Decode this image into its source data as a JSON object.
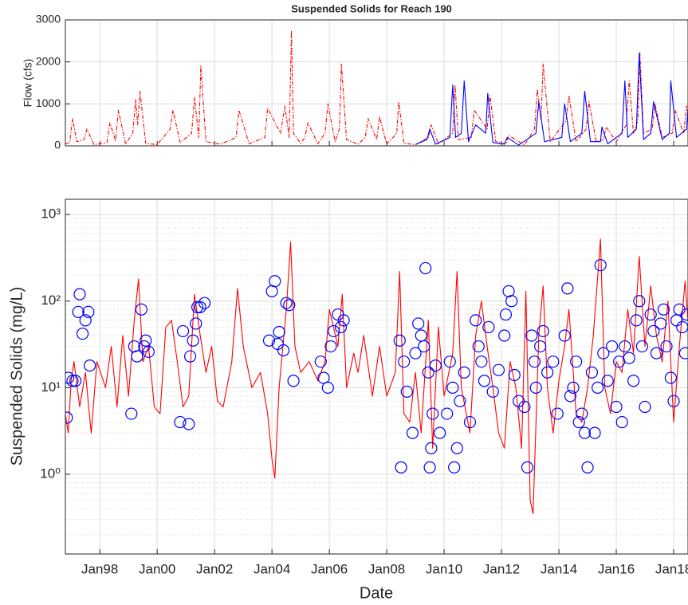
{
  "chart_data": [
    {
      "type": "line",
      "title": "Suspended Solids for Reach 190",
      "ylabel": "Flow (cfs)",
      "xlim": [
        1996.8,
        2018.5
      ],
      "xticks": [
        1998,
        2000,
        2002,
        2004,
        2006,
        2008,
        2010,
        2012,
        2014,
        2016,
        2018
      ],
      "show_xtick_labels": false,
      "ylim": [
        0,
        3000
      ],
      "yticks": [
        0,
        1000,
        2000,
        3000
      ],
      "grid": true,
      "series": [
        {
          "color": "#ff0000",
          "style": "line",
          "dash": "dashdot",
          "x": [
            1996.8,
            1996.95,
            1997.05,
            1997.2,
            1997.45,
            1997.55,
            1997.8,
            1998.25,
            1998.35,
            1998.55,
            1998.65,
            1998.9,
            1999.15,
            1999.25,
            1999.32,
            1999.4,
            1999.6,
            2000.0,
            2000.45,
            2000.55,
            2000.8,
            2001.2,
            2001.3,
            2001.45,
            2001.52,
            2001.7,
            2002.2,
            2002.75,
            2002.85,
            2003.2,
            2003.75,
            2003.85,
            2004.3,
            2004.45,
            2004.6,
            2004.68,
            2004.75,
            2005.0,
            2005.15,
            2005.25,
            2005.6,
            2005.85,
            2005.95,
            2006.2,
            2006.35,
            2006.42,
            2006.6,
            2007.0,
            2007.25,
            2007.35,
            2007.65,
            2007.75,
            2008.0,
            2008.35,
            2008.42,
            2008.6,
            2009.0,
            2009.45,
            2009.55,
            2009.8,
            2010.3,
            2010.38,
            2010.5,
            2010.95,
            2011.05,
            2011.5,
            2011.6,
            2011.8,
            2012.15,
            2012.25,
            2012.8,
            2013.15,
            2013.25,
            2013.38,
            2013.45,
            2013.7,
            2014.25,
            2014.35,
            2014.6,
            2014.95,
            2015.05,
            2015.3,
            2015.55,
            2015.65,
            2016.0,
            2016.35,
            2016.45,
            2016.6,
            2016.75,
            2016.82,
            2016.95,
            2017.25,
            2017.35,
            2017.6,
            2017.95,
            2018.05,
            2018.35,
            2018.45,
            2018.6
          ],
          "values": [
            40,
            80,
            650,
            100,
            150,
            400,
            30,
            80,
            550,
            120,
            850,
            40,
            300,
            1100,
            500,
            1300,
            60,
            30,
            400,
            850,
            80,
            300,
            1150,
            200,
            1900,
            100,
            40,
            200,
            850,
            50,
            200,
            900,
            300,
            950,
            200,
            2750,
            300,
            60,
            200,
            550,
            50,
            300,
            1000,
            100,
            400,
            1950,
            150,
            40,
            200,
            650,
            150,
            700,
            40,
            300,
            1050,
            60,
            30,
            200,
            500,
            50,
            300,
            1450,
            150,
            200,
            850,
            400,
            1200,
            100,
            40,
            250,
            20,
            400,
            1350,
            600,
            1950,
            100,
            600,
            1200,
            100,
            400,
            1050,
            100,
            150,
            450,
            100,
            500,
            1550,
            300,
            600,
            2250,
            300,
            400,
            1000,
            200,
            300,
            850,
            300,
            950,
            400
          ]
        },
        {
          "color": "#0000ff",
          "style": "line",
          "x": [
            2009.0,
            2009.4,
            2009.5,
            2009.7,
            2010.2,
            2010.3,
            2010.4,
            2010.6,
            2010.7,
            2010.85,
            2011.1,
            2011.45,
            2011.52,
            2011.7,
            2012.1,
            2012.2,
            2012.6,
            2013.2,
            2013.3,
            2013.5,
            2014.1,
            2014.2,
            2014.4,
            2014.8,
            2014.9,
            2015.1,
            2015.45,
            2015.5,
            2015.7,
            2016.2,
            2016.3,
            2016.4,
            2016.7,
            2016.8,
            2016.95,
            2017.2,
            2017.3,
            2017.6,
            2017.85,
            2017.9,
            2018.1,
            2018.45,
            2018.5,
            2018.6
          ],
          "values": [
            30,
            150,
            400,
            40,
            200,
            1450,
            200,
            300,
            1550,
            100,
            500,
            300,
            1250,
            80,
            40,
            200,
            20,
            300,
            1050,
            100,
            200,
            1000,
            100,
            300,
            1300,
            100,
            100,
            450,
            50,
            300,
            1550,
            200,
            400,
            2200,
            150,
            300,
            1050,
            150,
            300,
            1550,
            200,
            400,
            900,
            300
          ]
        }
      ]
    },
    {
      "type": "line",
      "xlabel": "Date",
      "ylabel": "Suspended Solids (mg/L)",
      "xlim": [
        1996.8,
        2018.5
      ],
      "xticks": [
        {
          "value": 1998,
          "label": "Jan98"
        },
        {
          "value": 2000,
          "label": "Jan00"
        },
        {
          "value": 2002,
          "label": "Jan02"
        },
        {
          "value": 2004,
          "label": "Jan04"
        },
        {
          "value": 2006,
          "label": "Jan06"
        },
        {
          "value": 2008,
          "label": "Jan08"
        },
        {
          "value": 2010,
          "label": "Jan10"
        },
        {
          "value": 2012,
          "label": "Jan12"
        },
        {
          "value": 2014,
          "label": "Jan14"
        },
        {
          "value": 2016,
          "label": "Jan16"
        },
        {
          "value": 2018,
          "label": "Jan18"
        }
      ],
      "show_xtick_labels": true,
      "yscale": "log",
      "ylim": [
        0.12,
        1500
      ],
      "yticks": [
        {
          "value": 1,
          "label": "10⁰"
        },
        {
          "value": 10,
          "label": "10¹"
        },
        {
          "value": 100,
          "label": "10²"
        },
        {
          "value": 1000,
          "label": "10³"
        }
      ],
      "grid": true,
      "minor_grid": true,
      "series": [
        {
          "color": "#ff0000",
          "style": "line",
          "x": [
            1996.8,
            1996.9,
            1997.0,
            1997.1,
            1997.3,
            1997.5,
            1997.7,
            1997.9,
            1998.2,
            1998.4,
            1998.6,
            1998.8,
            1999.0,
            1999.2,
            1999.35,
            1999.5,
            1999.7,
            1999.9,
            2000.1,
            2000.3,
            2000.5,
            2000.7,
            2000.9,
            2001.1,
            2001.3,
            2001.5,
            2001.7,
            2001.9,
            2002.1,
            2002.3,
            2002.6,
            2002.8,
            2003.0,
            2003.3,
            2003.6,
            2003.85,
            2004.0,
            2004.1,
            2004.25,
            2004.5,
            2004.65,
            2004.8,
            2005.0,
            2005.3,
            2005.6,
            2005.85,
            2006.0,
            2006.3,
            2006.45,
            2006.6,
            2006.85,
            2007.0,
            2007.2,
            2007.5,
            2007.75,
            2008.0,
            2008.3,
            2008.45,
            2008.6,
            2008.8,
            2009.0,
            2009.2,
            2009.45,
            2009.6,
            2009.8,
            2010.0,
            2010.3,
            2010.45,
            2010.6,
            2010.9,
            2011.1,
            2011.3,
            2011.5,
            2011.7,
            2011.9,
            2012.1,
            2012.3,
            2012.5,
            2012.7,
            2012.85,
            2013.0,
            2013.1,
            2013.3,
            2013.45,
            2013.6,
            2013.8,
            2014.0,
            2014.2,
            2014.35,
            2014.6,
            2014.8,
            2015.0,
            2015.2,
            2015.45,
            2015.6,
            2015.8,
            2016.0,
            2016.2,
            2016.4,
            2016.6,
            2016.8,
            2017.0,
            2017.2,
            2017.4,
            2017.6,
            2017.8,
            2018.0,
            2018.2,
            2018.4,
            2018.6
          ],
          "values": [
            5,
            3,
            12,
            20,
            6,
            15,
            3,
            20,
            10,
            30,
            6,
            40,
            8,
            60,
            180,
            20,
            30,
            6,
            5,
            50,
            60,
            20,
            6,
            8,
            120,
            40,
            15,
            30,
            7,
            6,
            20,
            140,
            30,
            10,
            15,
            5,
            1.5,
            0.9,
            10,
            80,
            480,
            30,
            15,
            20,
            12,
            20,
            80,
            30,
            120,
            10,
            25,
            15,
            40,
            8,
            30,
            8,
            15,
            220,
            5,
            4,
            15,
            3,
            60,
            2,
            50,
            8,
            25,
            220,
            10,
            3,
            40,
            100,
            30,
            10,
            3,
            2,
            20,
            10,
            2,
            130,
            0.5,
            0.35,
            40,
            150,
            10,
            3,
            12,
            30,
            80,
            5,
            4,
            10,
            40,
            520,
            10,
            5,
            20,
            15,
            80,
            25,
            330,
            30,
            150,
            40,
            20,
            100,
            4,
            30,
            170,
            20
          ]
        },
        {
          "color": "#0000ff",
          "style": "markers",
          "x": [
            1996.85,
            1996.9,
            1997.05,
            1997.15,
            1997.25,
            1997.3,
            1997.4,
            1997.5,
            1997.6,
            1997.65,
            1999.1,
            1999.2,
            1999.3,
            1999.45,
            1999.55,
            1999.6,
            1999.7,
            2000.8,
            2000.9,
            2001.1,
            2001.15,
            2001.25,
            2001.35,
            2001.4,
            2001.5,
            2001.65,
            2003.9,
            2004.0,
            2004.1,
            2004.2,
            2004.25,
            2004.4,
            2004.5,
            2004.6,
            2004.75,
            2005.7,
            2005.8,
            2005.95,
            2006.05,
            2006.15,
            2006.3,
            2006.4,
            2006.5,
            2008.45,
            2008.5,
            2008.6,
            2008.7,
            2008.9,
            2009.0,
            2009.1,
            2009.2,
            2009.3,
            2009.35,
            2009.45,
            2009.5,
            2009.55,
            2009.6,
            2009.7,
            2009.85,
            2010.1,
            2010.2,
            2010.3,
            2010.35,
            2010.45,
            2010.55,
            2010.7,
            2010.9,
            2011.1,
            2011.2,
            2011.3,
            2011.4,
            2011.55,
            2011.7,
            2011.9,
            2012.1,
            2012.15,
            2012.25,
            2012.35,
            2012.45,
            2012.6,
            2012.8,
            2012.9,
            2013.05,
            2013.15,
            2013.2,
            2013.35,
            2013.45,
            2013.6,
            2013.8,
            2013.95,
            2014.2,
            2014.3,
            2014.4,
            2014.5,
            2014.6,
            2014.7,
            2014.8,
            2014.9,
            2015.0,
            2015.15,
            2015.25,
            2015.35,
            2015.45,
            2015.55,
            2015.7,
            2015.85,
            2016.0,
            2016.1,
            2016.2,
            2016.3,
            2016.45,
            2016.6,
            2016.7,
            2016.8,
            2016.9,
            2017.0,
            2017.2,
            2017.3,
            2017.4,
            2017.55,
            2017.65,
            2017.75,
            2017.9,
            2018.0,
            2018.1,
            2018.2,
            2018.3,
            2018.4,
            2018.45
          ],
          "values": [
            4.5,
            13,
            12,
            12,
            75,
            120,
            42,
            60,
            75,
            18,
            5,
            30,
            23,
            80,
            30,
            35,
            26,
            4,
            45,
            3.8,
            23,
            35,
            55,
            85,
            85,
            95,
            35,
            130,
            170,
            32,
            44,
            27,
            95,
            90,
            12,
            20,
            13,
            10,
            30,
            45,
            70,
            50,
            60,
            35,
            1.2,
            20,
            9,
            3,
            25,
            55,
            40,
            30,
            240,
            15,
            1.2,
            2,
            5,
            18,
            3,
            5,
            20,
            10,
            1.2,
            2,
            7,
            15,
            4,
            60,
            30,
            20,
            12,
            50,
            9,
            16,
            40,
            70,
            130,
            100,
            14,
            7,
            6,
            1.2,
            40,
            20,
            10,
            30,
            45,
            15,
            20,
            5,
            40,
            140,
            8,
            10,
            20,
            4,
            5,
            3,
            1.2,
            15,
            3,
            10,
            260,
            25,
            12,
            30,
            6,
            20,
            4,
            30,
            22,
            12,
            60,
            100,
            30,
            6,
            70,
            45,
            25,
            55,
            80,
            30,
            13,
            7,
            60,
            80,
            50,
            25,
            70
          ]
        }
      ]
    }
  ]
}
